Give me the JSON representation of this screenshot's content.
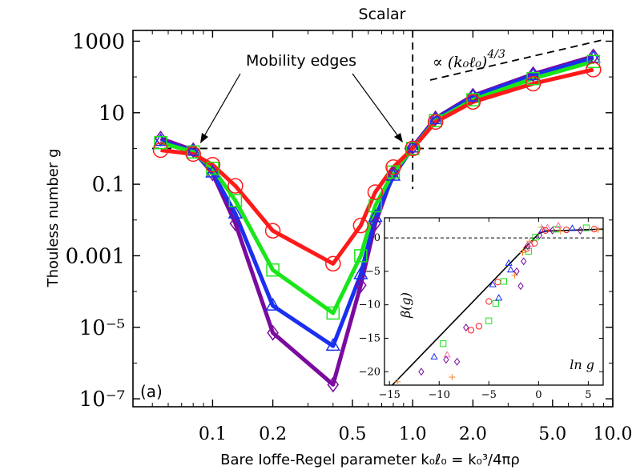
{
  "chart_data": [
    {
      "type": "line",
      "title": "Scalar",
      "xlabel": "Bare Ioffe-Regel parameter k₀ℓ₀ = k₀³/4πρ",
      "ylabel": "Thouless number g",
      "xscale": "log",
      "yscale": "log",
      "xlim": [
        0.04,
        10
      ],
      "ylim": [
        6e-08,
        2000
      ],
      "x_tick_labels": [
        "0.1",
        "0.2",
        "0.5",
        "1.0",
        "2.0",
        "5.0",
        "10.0"
      ],
      "x_ticks": [
        0.1,
        0.2,
        0.5,
        1.0,
        2.0,
        5.0,
        10.0
      ],
      "y_tick_labels": [
        "10⁻⁷",
        "10⁻⁵",
        "0.001",
        "0.1",
        "10",
        "1000"
      ],
      "y_ticks": [
        1e-07,
        1e-05,
        0.001,
        0.1,
        10,
        1000
      ],
      "panel_label": "(a)",
      "annotations": {
        "mobility_edges": "Mobility edges",
        "scaling_prefix": "∝",
        "scaling_base": "(k₀ℓ₀)",
        "scaling_exponent": "4/3"
      },
      "reference_lines": {
        "g_c": 1.0,
        "x_c": 1.0
      },
      "x": [
        0.055,
        0.08,
        0.1,
        0.13,
        0.2,
        0.4,
        0.55,
        0.65,
        0.8,
        1.0,
        1.3,
        2.0,
        4.0,
        8.0
      ],
      "series": [
        {
          "color": "#7b0a9e",
          "marker": "diamond",
          "values": [
            1.9,
            0.9,
            0.2,
            0.008,
            7e-06,
            2.5e-07,
            0.00015,
            0.008,
            0.2,
            1.1,
            7,
            30,
            120,
            380
          ]
        },
        {
          "color": "#1a2ff0",
          "marker": "triangle",
          "values": [
            1.6,
            0.85,
            0.21,
            0.015,
            4e-05,
            3e-06,
            0.0003,
            0.012,
            0.17,
            1.05,
            6.5,
            28,
            110,
            340
          ]
        },
        {
          "color": "#19e619",
          "marker": "square",
          "values": [
            1.45,
            0.8,
            0.28,
            0.035,
            0.0004,
            2.5e-05,
            0.001,
            0.025,
            0.22,
            1.0,
            6,
            23,
            90,
            270
          ]
        },
        {
          "color": "#ff1a1a",
          "marker": "circle",
          "values": [
            0.9,
            0.7,
            0.35,
            0.09,
            0.005,
            0.0006,
            0.007,
            0.06,
            0.3,
            1.0,
            5.5,
            20,
            65,
            160
          ]
        }
      ]
    },
    {
      "type": "scatter",
      "xlabel": "ln g",
      "ylabel": "β(g)",
      "xlim": [
        -15.5,
        6.5
      ],
      "ylim": [
        -22,
        3
      ],
      "x_ticks": [
        -15,
        -10,
        -5,
        0,
        5
      ],
      "x_tick_labels": [
        "−15",
        "−10",
        "−5",
        "0",
        "5"
      ],
      "y_ticks": [
        0,
        -5,
        -10,
        -15,
        -20
      ],
      "y_tick_labels": [
        "0",
        "−5",
        "−10",
        "−15",
        "−20"
      ],
      "fit_line": {
        "x": [
          -15.5,
          0,
          0.6,
          6.5
        ],
        "y": [
          -23.2,
          0.6,
          1.0,
          1.3
        ]
      },
      "points": [
        {
          "marker": "plus",
          "color": "#f28a2a",
          "x": -14.2,
          "y": -21.5
        },
        {
          "marker": "plus",
          "color": "#f28a2a",
          "x": -8.7,
          "y": -20.8
        },
        {
          "marker": "diamond",
          "color": "#7b0a9e",
          "x": -11.8,
          "y": -20.0
        },
        {
          "marker": "triangle",
          "color": "#1a2ff0",
          "x": -10.5,
          "y": -17.8
        },
        {
          "marker": "diamond",
          "color": "#7b0a9e",
          "x": -8.2,
          "y": -18.5
        },
        {
          "marker": "triangle",
          "color": "#ff6fa0",
          "x": -9.2,
          "y": -17.5
        },
        {
          "marker": "square",
          "color": "#19e619",
          "x": -9.6,
          "y": -15.8
        },
        {
          "marker": "diamond",
          "color": "#7b0a9e",
          "x": -9.3,
          "y": -18.2
        },
        {
          "marker": "circle",
          "color": "#ff1a1a",
          "x": -6.0,
          "y": -13.2
        },
        {
          "marker": "circle",
          "color": "#ff1a1a",
          "x": -6.8,
          "y": -13.8
        },
        {
          "marker": "diamond",
          "color": "#7b0a9e",
          "x": -7.3,
          "y": -13.4
        },
        {
          "marker": "square",
          "color": "#19e619",
          "x": -5.0,
          "y": -12.4
        },
        {
          "marker": "square",
          "color": "#19e619",
          "x": -4.3,
          "y": -9.8
        },
        {
          "marker": "circle",
          "color": "#ff1a1a",
          "x": -5.0,
          "y": -9.5
        },
        {
          "marker": "triangle",
          "color": "#1a2ff0",
          "x": -4.0,
          "y": -9.0
        },
        {
          "marker": "triangle",
          "color": "#1a2ff0",
          "x": -4.6,
          "y": -7.0
        },
        {
          "marker": "circle",
          "color": "#ff1a1a",
          "x": -4.1,
          "y": -6.6
        },
        {
          "marker": "square",
          "color": "#19e619",
          "x": -3.5,
          "y": -6.5
        },
        {
          "marker": "triangle",
          "color": "#1a2ff0",
          "x": -2.8,
          "y": -4.8
        },
        {
          "marker": "plus",
          "color": "#f28a2a",
          "x": -2.4,
          "y": -5.6
        },
        {
          "marker": "diamond",
          "color": "#7b0a9e",
          "x": -2.2,
          "y": -5.0
        },
        {
          "marker": "diamond",
          "color": "#7b0a9e",
          "x": -1.8,
          "y": -7.2
        },
        {
          "marker": "triangle",
          "color": "#1a2ff0",
          "x": -3.0,
          "y": -3.8
        },
        {
          "marker": "diamond",
          "color": "#7b0a9e",
          "x": -1.5,
          "y": -3.5
        },
        {
          "marker": "plus",
          "color": "#f28a2a",
          "x": -1.6,
          "y": -2.2
        },
        {
          "marker": "square",
          "color": "#19e619",
          "x": -1.0,
          "y": -2.0
        },
        {
          "marker": "circle",
          "color": "#ff1a1a",
          "x": -1.2,
          "y": -1.6
        },
        {
          "marker": "triangle",
          "color": "#ff6fa0",
          "x": -0.8,
          "y": -1.0
        },
        {
          "marker": "diamond",
          "color": "#7b0a9e",
          "x": -1.1,
          "y": -1.2
        },
        {
          "marker": "plus",
          "color": "#f28a2a",
          "x": -0.9,
          "y": -0.5
        },
        {
          "marker": "circle",
          "color": "#ff1a1a",
          "x": -0.4,
          "y": -0.8
        },
        {
          "marker": "square",
          "color": "#19e619",
          "x": -0.3,
          "y": 0.1
        },
        {
          "marker": "diamond",
          "color": "#7b0a9e",
          "x": 0.1,
          "y": 0.4
        },
        {
          "marker": "triangle",
          "color": "#1a2ff0",
          "x": 0.4,
          "y": 1.2
        },
        {
          "marker": "circle",
          "color": "#ff1a1a",
          "x": 0.7,
          "y": 1.1
        },
        {
          "marker": "plus",
          "color": "#f28a2a",
          "x": 0.3,
          "y": 1.6
        },
        {
          "marker": "triangle",
          "color": "#ff6fa0",
          "x": 0.9,
          "y": 1.5
        },
        {
          "marker": "diamond",
          "color": "#7b0a9e",
          "x": 1.4,
          "y": 1.1
        },
        {
          "marker": "square",
          "color": "#19e619",
          "x": 1.8,
          "y": 1.3
        },
        {
          "marker": "plus",
          "color": "#f28a2a",
          "x": 2.2,
          "y": 1.0
        },
        {
          "marker": "circle",
          "color": "#ff1a1a",
          "x": 2.8,
          "y": 1.2
        },
        {
          "marker": "triangle",
          "color": "#1a2ff0",
          "x": 3.4,
          "y": 1.4
        },
        {
          "marker": "diamond",
          "color": "#7b0a9e",
          "x": 4.2,
          "y": 1.1
        },
        {
          "marker": "square",
          "color": "#19e619",
          "x": 4.8,
          "y": 1.5
        },
        {
          "marker": "circle",
          "color": "#ff1a1a",
          "x": 5.6,
          "y": 1.3
        },
        {
          "marker": "plus",
          "color": "#f28a2a",
          "x": 6.0,
          "y": 1.2
        },
        {
          "marker": "triangle",
          "color": "#ff6fa0",
          "x": 2.0,
          "y": 1.8
        }
      ]
    }
  ]
}
